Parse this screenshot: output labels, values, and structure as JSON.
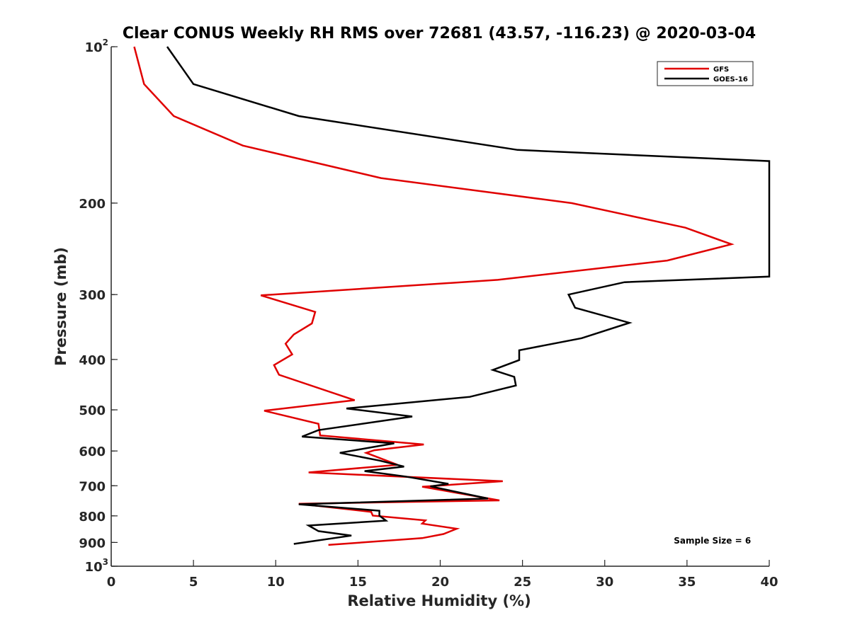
{
  "chart_data": {
    "type": "line",
    "title": "Clear CONUS Weekly RH RMS over 72681 (43.57, -116.23) @ 2020-03-04",
    "xlabel": "Relative Humidity (%)",
    "ylabel": "Pressure (mb)",
    "xlim": [
      0,
      40
    ],
    "ylim": [
      100,
      1000
    ],
    "y_scale": "log",
    "y_reversed": true,
    "grid": false,
    "legend_position": "top-right",
    "x_ticks": [
      {
        "value": 0,
        "label": "0"
      },
      {
        "value": 5,
        "label": "5"
      },
      {
        "value": 10,
        "label": "10"
      },
      {
        "value": 15,
        "label": "15"
      },
      {
        "value": 20,
        "label": "20"
      },
      {
        "value": 25,
        "label": "25"
      },
      {
        "value": 30,
        "label": "30"
      },
      {
        "value": 35,
        "label": "35"
      },
      {
        "value": 40,
        "label": "40"
      }
    ],
    "y_ticks": [
      {
        "value": 100,
        "label": "10",
        "sup": "2"
      },
      {
        "value": 200,
        "label": "200",
        "sup": ""
      },
      {
        "value": 300,
        "label": "300",
        "sup": ""
      },
      {
        "value": 400,
        "label": "400",
        "sup": ""
      },
      {
        "value": 500,
        "label": "500",
        "sup": ""
      },
      {
        "value": 600,
        "label": "600",
        "sup": ""
      },
      {
        "value": 700,
        "label": "700",
        "sup": ""
      },
      {
        "value": 800,
        "label": "800",
        "sup": ""
      },
      {
        "value": 900,
        "label": "900",
        "sup": ""
      },
      {
        "value": 1000,
        "label": "10",
        "sup": "3"
      }
    ],
    "series": [
      {
        "name": "GFS",
        "color": "#e00000",
        "points": [
          [
            1.4,
            100
          ],
          [
            2.0,
            118
          ],
          [
            3.8,
            136
          ],
          [
            8.0,
            155
          ],
          [
            16.4,
            179
          ],
          [
            28.0,
            200
          ],
          [
            34.9,
            223
          ],
          [
            37.7,
            240
          ],
          [
            33.8,
            258
          ],
          [
            23.5,
            281
          ],
          [
            9.1,
            301
          ],
          [
            12.4,
            324
          ],
          [
            12.2,
            341
          ],
          [
            11.1,
            358
          ],
          [
            10.6,
            373
          ],
          [
            11.0,
            391
          ],
          [
            9.9,
            410
          ],
          [
            10.2,
            428
          ],
          [
            14.8,
            479
          ],
          [
            9.3,
            502
          ],
          [
            12.6,
            532
          ],
          [
            12.7,
            560
          ],
          [
            19.0,
            583
          ],
          [
            16.0,
            598
          ],
          [
            15.5,
            605
          ],
          [
            17.4,
            638
          ],
          [
            12.0,
            660
          ],
          [
            23.8,
            686
          ],
          [
            18.9,
            703
          ],
          [
            23.6,
            747
          ],
          [
            11.4,
            758
          ],
          [
            15.8,
            786
          ],
          [
            15.9,
            799
          ],
          [
            19.1,
            816
          ],
          [
            18.9,
            828
          ],
          [
            21.0,
            847
          ],
          [
            20.2,
            867
          ],
          [
            18.9,
            883
          ],
          [
            13.2,
            910
          ]
        ]
      },
      {
        "name": "GOES-16",
        "color": "#000000",
        "points": [
          [
            3.4,
            100
          ],
          [
            5.0,
            118
          ],
          [
            11.4,
            136
          ],
          [
            24.7,
            158
          ],
          [
            40.0,
            166
          ],
          [
            40.0,
            277
          ],
          [
            31.2,
            284
          ],
          [
            27.8,
            300
          ],
          [
            28.2,
            318
          ],
          [
            31.5,
            340
          ],
          [
            28.6,
            364
          ],
          [
            24.8,
            384
          ],
          [
            24.8,
            401
          ],
          [
            23.2,
            419
          ],
          [
            24.5,
            432
          ],
          [
            24.6,
            449
          ],
          [
            21.8,
            472
          ],
          [
            14.3,
            497
          ],
          [
            18.3,
            515
          ],
          [
            12.6,
            547
          ],
          [
            11.6,
            563
          ],
          [
            17.2,
            580
          ],
          [
            13.9,
            605
          ],
          [
            16.3,
            626
          ],
          [
            17.8,
            643
          ],
          [
            15.4,
            656
          ],
          [
            17.9,
            672
          ],
          [
            20.5,
            694
          ],
          [
            19.4,
            702
          ],
          [
            22.9,
            741
          ],
          [
            11.4,
            760
          ],
          [
            16.3,
            782
          ],
          [
            16.3,
            799
          ],
          [
            16.7,
            817
          ],
          [
            12.0,
            835
          ],
          [
            12.6,
            856
          ],
          [
            14.6,
            873
          ],
          [
            11.1,
            906
          ]
        ]
      }
    ],
    "annotations": [
      {
        "text": "Sample Size = 6",
        "x": 34.2,
        "y": 905
      }
    ]
  }
}
